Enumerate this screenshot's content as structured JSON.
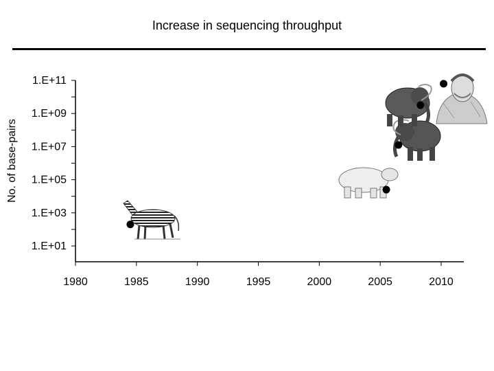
{
  "slide": {
    "title": "Increase in sequencing throughput"
  },
  "chart_data": {
    "type": "scatter",
    "title": "Increase in sequencing throughput",
    "xlabel": "",
    "ylabel": "No. of base-pairs",
    "xlim": [
      1980,
      2012
    ],
    "ylim": [
      0,
      11
    ],
    "y_scale": "log10",
    "x_ticks": [
      "1980",
      "1985",
      "1990",
      "1995",
      "2000",
      "2005",
      "2010"
    ],
    "y_ticks": [
      "1.E+01",
      "1.E+03",
      "1.E+05",
      "1.E+07",
      "1.E+09",
      "1.E+11"
    ],
    "grid": false,
    "points": [
      {
        "x": 1984.5,
        "y": 2.3,
        "icon": "zebra-illustration"
      },
      {
        "x": 2005.5,
        "y": 4.4,
        "icon": "cave-bear-illustration"
      },
      {
        "x": 2006.5,
        "y": 7.1,
        "icon": "mammoth-illustration"
      },
      {
        "x": 2008.3,
        "y": 9.5,
        "icon": "mammoth-illustration"
      },
      {
        "x": 2010.2,
        "y": 10.8,
        "icon": "neanderthal-illustration"
      }
    ],
    "colors": {
      "marker": "#000000",
      "axis": "#000000"
    }
  }
}
